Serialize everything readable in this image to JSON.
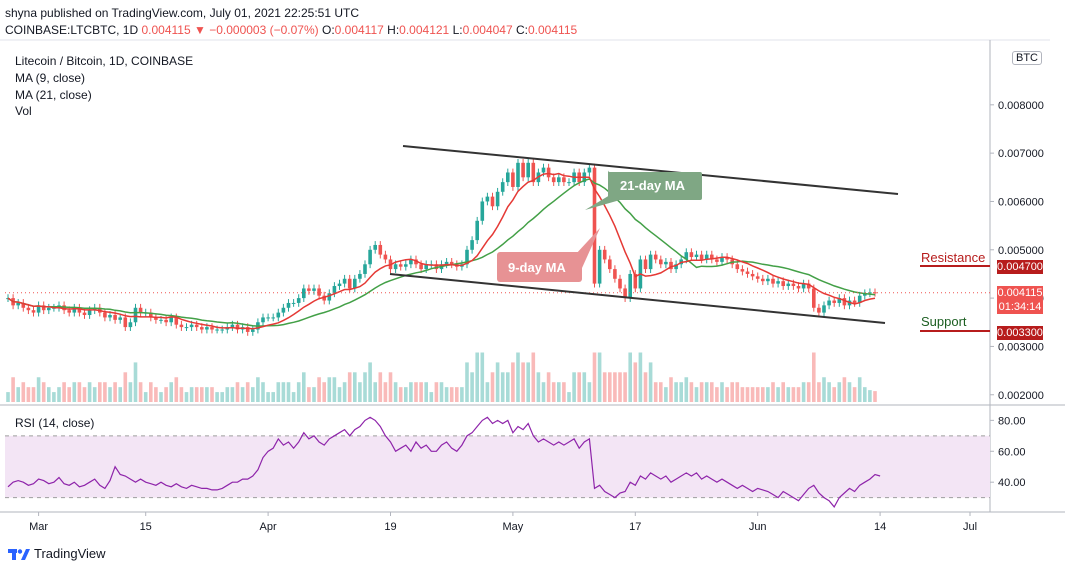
{
  "header": {
    "line1": "shyna published on TradingView.com, July 01, 2021 22:25:51 UTC",
    "symbol": "COINBASE:LTCBTC, 1D",
    "price": "0.004115",
    "change": "▼ −0.000003 (−0.07%)",
    "o_label": "O:",
    "o": "0.004117",
    "h_label": "H:",
    "h": "0.004121",
    "l_label": "L:",
    "l": "0.004047",
    "c_label": "C:",
    "c": "0.004115"
  },
  "legend": {
    "title": "Litecoin / Bitcoin, 1D, COINBASE",
    "ma9": "MA (9, close)",
    "ma21": "MA (21, close)",
    "vol": "Vol",
    "rsi": "RSI (14, close)"
  },
  "axis": {
    "currency": "BTC",
    "last_price": "0.004115",
    "countdown": "01:34:14",
    "resistance_price": "0.004700",
    "support_price": "0.003300"
  },
  "annotations": {
    "ma21": "21-day MA",
    "ma9": "9-day MA",
    "resistance": "Resistance",
    "support": "Support"
  },
  "footer": {
    "brand": "TradingView"
  },
  "colors": {
    "up": "#26a69a",
    "down": "#ef5350",
    "ma9": "#e53935",
    "ma21": "#43a047",
    "rsi": "#8e24aa",
    "rsi_band": "#f3e5f5",
    "trendline": "#333333"
  },
  "chart_data": [
    {
      "type": "candlestick",
      "title": "Litecoin / Bitcoin, 1D, COINBASE",
      "x_ticks": [
        "Mar",
        "15",
        "Apr",
        "19",
        "May",
        "17",
        "Jun",
        "14",
        "Jul"
      ],
      "y_ticks": [
        "0.002000",
        "0.003000",
        "0.004000",
        "0.005000",
        "0.006000",
        "0.007000",
        "0.008000"
      ],
      "ylim": [
        0.00185,
        0.0093
      ],
      "series": [
        {
          "name": "MA (9, close)"
        },
        {
          "name": "MA (21, close)"
        },
        {
          "name": "Vol"
        }
      ],
      "closes": [
        0.004,
        0.00385,
        0.0039,
        0.0038,
        0.00375,
        0.0037,
        0.00385,
        0.00375,
        0.0038,
        0.0038,
        0.00385,
        0.00375,
        0.0037,
        0.0038,
        0.0037,
        0.00365,
        0.00375,
        0.0038,
        0.0037,
        0.0036,
        0.00365,
        0.00355,
        0.0036,
        0.0034,
        0.0035,
        0.0038,
        0.0037,
        0.0037,
        0.0036,
        0.00355,
        0.00355,
        0.0035,
        0.0036,
        0.00345,
        0.0034,
        0.0034,
        0.00345,
        0.0034,
        0.00335,
        0.0034,
        0.00335,
        0.00335,
        0.00335,
        0.0034,
        0.00345,
        0.00335,
        0.0034,
        0.0033,
        0.00335,
        0.0035,
        0.0036,
        0.0036,
        0.0036,
        0.0037,
        0.0038,
        0.0039,
        0.0039,
        0.004,
        0.0042,
        0.00415,
        0.0042,
        0.00405,
        0.00395,
        0.0041,
        0.00425,
        0.0043,
        0.0044,
        0.0042,
        0.0044,
        0.0045,
        0.0047,
        0.005,
        0.0051,
        0.0049,
        0.0048,
        0.0046,
        0.0047,
        0.00465,
        0.0047,
        0.0048,
        0.0047,
        0.0046,
        0.0047,
        0.0047,
        0.0046,
        0.0047,
        0.00475,
        0.0047,
        0.00465,
        0.0047,
        0.005,
        0.0052,
        0.0056,
        0.006,
        0.0061,
        0.0059,
        0.0062,
        0.0064,
        0.0066,
        0.0063,
        0.0068,
        0.0065,
        0.0068,
        0.0064,
        0.0066,
        0.0067,
        0.0065,
        0.0064,
        0.0065,
        0.0064,
        0.0064,
        0.0066,
        0.0064,
        0.0066,
        0.0067,
        0.0043,
        0.005,
        0.0048,
        0.0046,
        0.0044,
        0.0042,
        0.004,
        0.0045,
        0.0042,
        0.0048,
        0.0046,
        0.0049,
        0.0048,
        0.0047,
        0.00475,
        0.0046,
        0.0047,
        0.0048,
        0.00495,
        0.00485,
        0.0049,
        0.0048,
        0.0049,
        0.0048,
        0.00475,
        0.00485,
        0.0048,
        0.0047,
        0.0046,
        0.00455,
        0.0045,
        0.00445,
        0.0044,
        0.00435,
        0.0044,
        0.0043,
        0.00435,
        0.00425,
        0.0043,
        0.00425,
        0.0042,
        0.0043,
        0.0042,
        0.0038,
        0.0037,
        0.00385,
        0.00395,
        0.0039,
        0.004,
        0.00385,
        0.00395,
        0.0039,
        0.00405,
        0.0041,
        0.00412,
        0.00411
      ]
    },
    {
      "type": "line",
      "title": "RSI (14, close)",
      "y_ticks": [
        "40.00",
        "60.00",
        "80.00"
      ],
      "ylim": [
        22,
        88
      ],
      "band": [
        30,
        70
      ],
      "values": [
        37,
        40,
        41,
        40,
        38,
        39,
        42,
        41,
        39,
        40,
        43,
        39,
        38,
        40,
        37,
        38,
        40,
        42,
        38,
        36,
        41,
        50,
        45,
        44,
        42,
        40,
        42,
        40,
        39,
        38,
        40,
        38,
        37,
        39,
        37,
        36,
        38,
        37,
        36,
        36,
        35,
        35,
        36,
        38,
        40,
        40,
        42,
        42,
        44,
        48,
        56,
        60,
        62,
        68,
        64,
        66,
        62,
        66,
        72,
        68,
        70,
        66,
        64,
        68,
        70,
        72,
        74,
        70,
        74,
        76,
        80,
        82,
        80,
        76,
        70,
        66,
        60,
        62,
        64,
        60,
        66,
        62,
        64,
        60,
        60,
        64,
        66,
        62,
        60,
        64,
        70,
        72,
        76,
        80,
        82,
        78,
        80,
        78,
        80,
        72,
        76,
        74,
        78,
        70,
        66,
        68,
        66,
        64,
        66,
        64,
        66,
        68,
        62,
        66,
        68,
        36,
        38,
        34,
        32,
        30,
        33,
        34,
        40,
        38,
        44,
        42,
        46,
        44,
        42,
        44,
        40,
        42,
        44,
        46,
        44,
        46,
        42,
        44,
        42,
        40,
        42,
        40,
        38,
        36,
        38,
        36,
        34,
        36,
        35,
        34,
        32,
        30,
        34,
        32,
        30,
        28,
        32,
        36,
        38,
        33,
        30,
        28,
        24,
        30,
        33,
        36,
        34,
        38,
        40,
        42,
        45,
        44
      ]
    }
  ]
}
